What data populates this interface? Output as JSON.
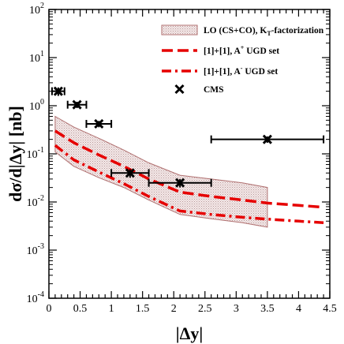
{
  "chart_data": {
    "type": "line",
    "xlabel": "|Δy|",
    "ylabel": "dσ/d|Δy| [nb]",
    "xlim": [
      0,
      4.5
    ],
    "ylim": [
      0.0001,
      100
    ],
    "yscale": "log",
    "xticks": [
      "0",
      "0.5",
      "1",
      "1.5",
      "2",
      "2.5",
      "3",
      "3.5",
      "4",
      "4.5"
    ],
    "yticks": [
      {
        "base": "10",
        "exp": "2"
      },
      {
        "base": "10",
        "exp": "1"
      },
      {
        "base": "10",
        "exp": "0"
      },
      {
        "base": "10",
        "exp": "-1"
      },
      {
        "base": "10",
        "exp": "-2"
      },
      {
        "base": "10",
        "exp": "-3"
      },
      {
        "base": "10",
        "exp": "-4"
      }
    ],
    "legend_position": "top-right",
    "legend": [
      {
        "key": "band",
        "text": "LO (CS+CO), K",
        "sub": "T",
        "text2": "-factorization"
      },
      {
        "key": "aplus",
        "text": "[1]+[1], A",
        "sup": "+",
        "text2": " UGD set"
      },
      {
        "key": "aminus",
        "text": "[1]+[1], A",
        "sup": "-",
        "text2": " UGD set"
      },
      {
        "key": "cms",
        "text": "CMS"
      }
    ],
    "band": {
      "x": [
        0.1,
        0.4,
        0.8,
        1.2,
        1.6,
        2.1,
        2.6,
        3.1,
        3.5
      ],
      "upper": [
        0.6,
        0.36,
        0.21,
        0.12,
        0.065,
        0.036,
        0.03,
        0.025,
        0.02
      ],
      "lower": [
        0.11,
        0.055,
        0.032,
        0.02,
        0.011,
        0.0055,
        0.0045,
        0.0037,
        0.003
      ]
    },
    "series": [
      {
        "key": "aplus",
        "x": [
          0.1,
          0.4,
          0.8,
          1.2,
          1.6,
          2.1,
          2.6,
          3.1,
          3.5,
          4.0,
          4.4
        ],
        "values": [
          0.3,
          0.17,
          0.095,
          0.055,
          0.03,
          0.016,
          0.013,
          0.011,
          0.0095,
          0.0085,
          0.0078
        ]
      },
      {
        "key": "aminus",
        "x": [
          0.1,
          0.4,
          0.8,
          1.2,
          1.6,
          2.1,
          2.6,
          3.1,
          3.5,
          4.0,
          4.4
        ],
        "values": [
          0.15,
          0.075,
          0.042,
          0.024,
          0.013,
          0.0065,
          0.0055,
          0.0048,
          0.0044,
          0.004,
          0.0037
        ]
      }
    ],
    "cms": {
      "x": [
        0.15,
        0.45,
        0.8,
        1.3,
        2.1,
        3.5
      ],
      "y": [
        2.0,
        1.05,
        0.42,
        0.04,
        0.025,
        0.2
      ],
      "xerr_low": [
        0.1,
        0.15,
        0.2,
        0.3,
        0.5,
        0.9
      ],
      "xerr_high": [
        0.1,
        0.15,
        0.2,
        0.3,
        0.5,
        0.9
      ],
      "yerr_frac": [
        0.2,
        0.15,
        0.15,
        0.2,
        0.2,
        0.15
      ]
    },
    "colors": {
      "band_fill": "#e8d6d6",
      "band_edge": "#b07070",
      "curve": "#e60000",
      "points": "#000000"
    }
  }
}
